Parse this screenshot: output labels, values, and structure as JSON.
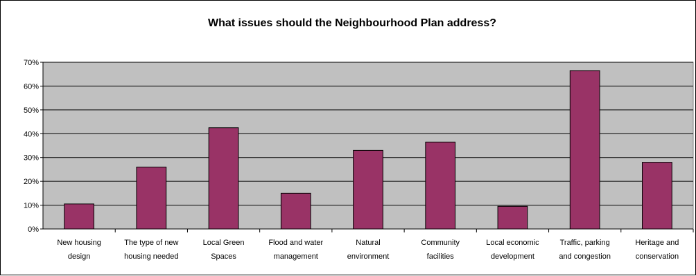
{
  "chart_data": {
    "type": "bar",
    "title": "What issues should the Neighbourhood Plan address?",
    "xlabel": "",
    "ylabel": "",
    "ylim": [
      0,
      70
    ],
    "y_ticks": [
      "0%",
      "10%",
      "20%",
      "30%",
      "40%",
      "50%",
      "60%",
      "70%"
    ],
    "grid": true,
    "legend": "none",
    "categories": [
      [
        "New housing",
        "design"
      ],
      [
        "The type of new",
        "housing needed"
      ],
      [
        "Local Green",
        "Spaces"
      ],
      [
        "Flood and water",
        "management"
      ],
      [
        "Natural",
        "environment"
      ],
      [
        "Community",
        "facilities"
      ],
      [
        "Local economic",
        "development"
      ],
      [
        "Traffic, parking",
        "and congestion"
      ],
      [
        "Heritage and",
        "conservation"
      ]
    ],
    "values": [
      10.5,
      26,
      42.5,
      15,
      33,
      36.5,
      9.5,
      66.5,
      28
    ],
    "colors": {
      "bar": "#993366",
      "plot_bg": "#c0c0c0",
      "grid": "#000000"
    }
  }
}
